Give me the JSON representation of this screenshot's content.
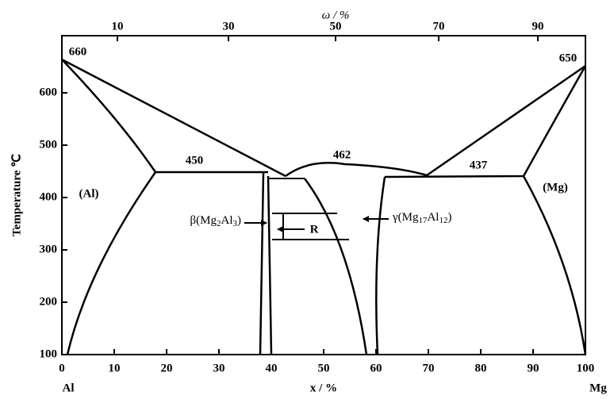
{
  "top_axis": {
    "title": "ω / %",
    "ticks": [
      10,
      30,
      50,
      70,
      90
    ]
  },
  "bottom_axis": {
    "title": "x / %",
    "ticks": [
      0,
      10,
      20,
      30,
      40,
      50,
      60,
      70,
      80,
      90,
      100
    ],
    "left_end": "Al",
    "right_end": "Mg"
  },
  "left_axis": {
    "title": "Temperature ℃",
    "ticks": [
      100,
      200,
      300,
      400,
      500,
      600
    ]
  },
  "annotations": [
    "660",
    "650",
    "450",
    "462",
    "437",
    "(Al)",
    "(Mg)",
    "R"
  ],
  "beta_label": [
    "β(Mg",
    "2",
    "Al",
    "3",
    ")"
  ],
  "gamma_label": [
    "γ(Mg",
    "17",
    "Al",
    "12",
    ")"
  ]
}
